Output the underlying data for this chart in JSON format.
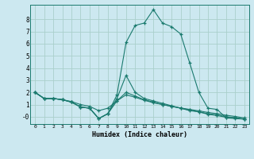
{
  "background_color": "#cce8f0",
  "grid_color": "#aacfcc",
  "line_color": "#1a7a6e",
  "xlabel": "Humidex (Indice chaleur)",
  "xlim": [
    -0.5,
    23.5
  ],
  "ylim": [
    -0.6,
    9.2
  ],
  "xticks": [
    0,
    1,
    2,
    3,
    4,
    5,
    6,
    7,
    8,
    9,
    10,
    11,
    12,
    13,
    14,
    15,
    16,
    17,
    18,
    19,
    20,
    21,
    22,
    23
  ],
  "yticks": [
    0,
    1,
    2,
    3,
    4,
    5,
    6,
    7,
    8
  ],
  "ytick_labels": [
    "-0",
    "1",
    "2",
    "3",
    "4",
    "5",
    "6",
    "7",
    "8"
  ],
  "lines": [
    {
      "x": [
        0,
        1,
        2,
        3,
        4,
        5,
        6,
        7,
        8,
        9,
        10,
        11,
        12,
        13,
        14,
        15,
        16,
        17,
        18,
        19,
        20,
        21,
        22,
        23
      ],
      "y": [
        2.0,
        1.5,
        1.5,
        1.4,
        1.2,
        0.8,
        0.7,
        -0.15,
        0.25,
        1.8,
        6.1,
        7.5,
        7.7,
        8.8,
        7.7,
        7.4,
        6.8,
        4.4,
        2.0,
        0.7,
        0.6,
        -0.1,
        -0.15,
        -0.2
      ]
    },
    {
      "x": [
        0,
        1,
        2,
        3,
        4,
        5,
        6,
        7,
        8,
        9,
        10,
        11,
        12,
        13,
        14,
        15,
        16,
        17,
        18,
        19,
        20,
        21,
        22,
        23
      ],
      "y": [
        2.0,
        1.5,
        1.5,
        1.4,
        1.2,
        0.8,
        0.7,
        -0.15,
        0.25,
        1.5,
        3.4,
        2.0,
        1.5,
        1.3,
        1.1,
        0.9,
        0.7,
        0.5,
        0.4,
        0.2,
        0.1,
        -0.05,
        -0.1,
        -0.2
      ]
    },
    {
      "x": [
        0,
        1,
        2,
        3,
        4,
        5,
        6,
        7,
        8,
        9,
        10,
        11,
        12,
        13,
        14,
        15,
        16,
        17,
        18,
        19,
        20,
        21,
        22,
        23
      ],
      "y": [
        2.0,
        1.5,
        1.5,
        1.4,
        1.2,
        0.8,
        0.7,
        -0.15,
        0.25,
        1.3,
        2.0,
        1.7,
        1.4,
        1.2,
        1.0,
        0.85,
        0.7,
        0.55,
        0.4,
        0.25,
        0.15,
        0.0,
        -0.08,
        -0.2
      ]
    },
    {
      "x": [
        0,
        1,
        2,
        3,
        4,
        5,
        6,
        7,
        8,
        9,
        10,
        11,
        12,
        13,
        14,
        15,
        16,
        17,
        18,
        19,
        20,
        21,
        22,
        23
      ],
      "y": [
        2.0,
        1.5,
        1.5,
        1.4,
        1.25,
        1.0,
        0.85,
        0.5,
        0.7,
        1.3,
        1.8,
        1.6,
        1.35,
        1.15,
        1.0,
        0.85,
        0.72,
        0.6,
        0.48,
        0.35,
        0.25,
        0.12,
        0.02,
        -0.1
      ]
    }
  ]
}
